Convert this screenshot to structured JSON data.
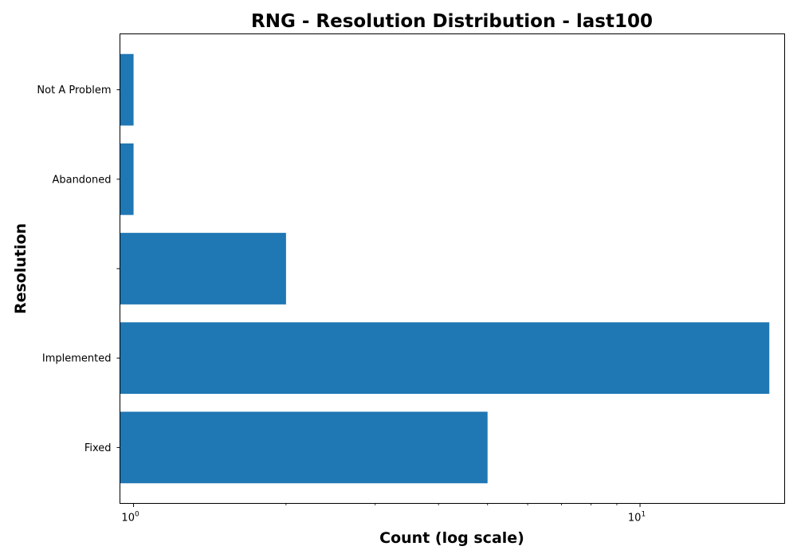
{
  "chart_data": {
    "type": "bar",
    "orientation": "horizontal",
    "title": "RNG - Resolution Distribution - last100",
    "xlabel": "Count (log scale)",
    "ylabel": "Resolution",
    "x_scale": "log",
    "xlim": [
      0.94,
      19.3
    ],
    "x_major_ticks": [
      {
        "value": 1,
        "base": "10",
        "exp": "0"
      },
      {
        "value": 10,
        "base": "10",
        "exp": "1"
      }
    ],
    "categories": [
      "Fixed",
      "Implemented",
      "",
      "Abandoned",
      "Not A Problem"
    ],
    "values": [
      5,
      18,
      2,
      1,
      1
    ],
    "colors": {
      "bar": "#1f77b4"
    },
    "grid": false,
    "legend": "none"
  }
}
